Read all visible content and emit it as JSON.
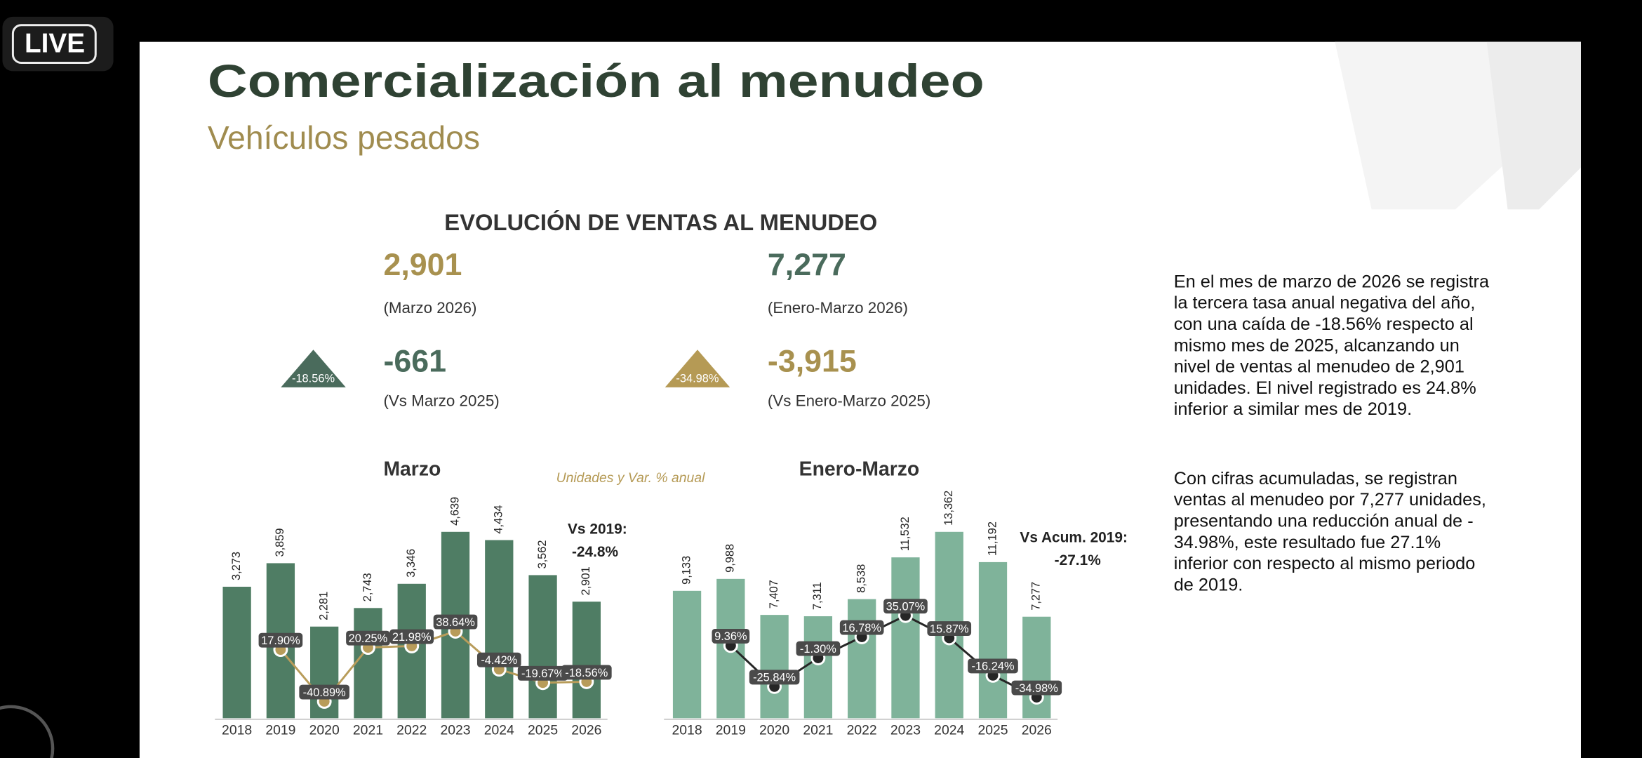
{
  "live_badge": "LIVE",
  "slide": {
    "title": "Comercialización al menudeo",
    "subtitle": "Vehículos pesados",
    "section_title": "EVOLUCIÓN DE VENTAS AL MENUDEO",
    "kpis": [
      {
        "value": "2,901",
        "label": "(Marzo 2026)",
        "change_badge": "-18.56%",
        "change": "-661",
        "change_label": "(Vs Marzo 2025)"
      },
      {
        "value": "7,277",
        "label": "(Enero-Marzo 2026)",
        "change_badge": "-34.98%",
        "change": "-3,915",
        "change_label": "(Vs Enero-Marzo 2025)"
      }
    ],
    "paragraphs": [
      [
        "En el mes de marzo de 2026 se registra",
        "la tercera tasa anual negativa del año,",
        "con una caída de -18.56% respecto al",
        "mismo mes de 2025, alcanzando un",
        "nivel de ventas al menudeo de 2,901",
        "unidades. El nivel registrado es 24.8%",
        "inferior a similar mes de 2019."
      ],
      [
        "Con cifras acumuladas, se registran",
        "ventas al menudeo por 7,277 unidades,",
        "presentando una reducción anual de -",
        "34.98%, este resultado fue 27.1%",
        "inferior con respecto al mismo periodo",
        "de 2019."
      ]
    ]
  },
  "chart_data": [
    {
      "type": "bar",
      "title": "Marzo",
      "note": "Unidades y Var. % anual",
      "annotation": [
        "Vs 2019:",
        "-24.8%"
      ],
      "categories": [
        "2018",
        "2019",
        "2020",
        "2021",
        "2022",
        "2023",
        "2024",
        "2025",
        "2026"
      ],
      "series": [
        {
          "color": "#4f7d64",
          "values": [
            3273,
            3859,
            2281,
            2743,
            3346,
            4639,
            4434,
            3562,
            2901
          ],
          "value_labels": [
            "3,273",
            "3,859",
            "2,281",
            "2,743",
            "3,346",
            "4,639",
            "4,434",
            "3,562",
            "2,901"
          ]
        },
        {
          "type": "line",
          "axis": "y2",
          "color": "#b89c5a",
          "values": [
            null,
            17.9,
            -40.89,
            20.25,
            21.98,
            38.64,
            -4.42,
            -19.67,
            -18.56
          ],
          "value_labels": [
            null,
            "17.90%",
            "-40.89%",
            "20.25%",
            "21.98%",
            "38.64%",
            "-4.42%",
            "-19.67%",
            "-18.56%"
          ]
        }
      ]
    },
    {
      "type": "bar",
      "title": "Enero-Marzo",
      "annotation": [
        "Vs Acum. 2019:",
        "-27.1%"
      ],
      "categories": [
        "2018",
        "2019",
        "2020",
        "2021",
        "2022",
        "2023",
        "2024",
        "2025",
        "2026"
      ],
      "series": [
        {
          "color": "#7fb39a",
          "values": [
            9133,
            9988,
            7407,
            7311,
            8538,
            11532,
            13362,
            11192,
            7277
          ],
          "value_labels": [
            "9,133",
            "9,988",
            "7,407",
            "7,311",
            "8,538",
            "11,532",
            "13,362",
            "11,192",
            "7,277"
          ]
        },
        {
          "type": "line",
          "axis": "y2",
          "color": "#262626",
          "values": [
            null,
            9.36,
            -25.84,
            -1.3,
            16.78,
            35.07,
            15.87,
            -16.24,
            -34.98
          ],
          "value_labels": [
            null,
            "9.36%",
            "-25.84%",
            "-1.30%",
            "16.78%",
            "35.07%",
            "15.87%",
            "-16.24%",
            "-34.98%"
          ]
        }
      ]
    }
  ]
}
